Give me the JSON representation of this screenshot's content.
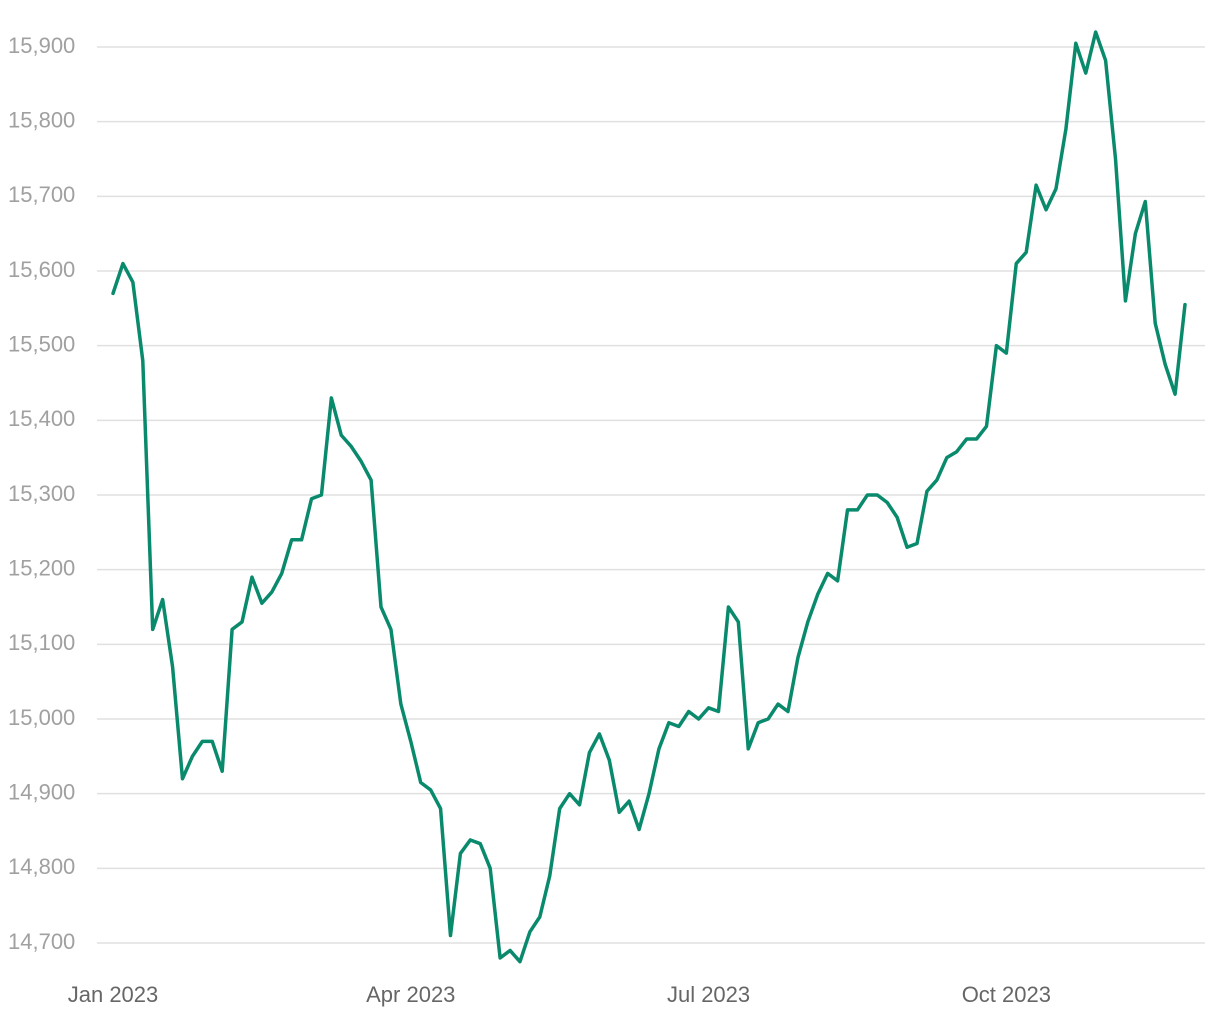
{
  "chart_data": {
    "type": "line",
    "categories": [
      "Jan 2023",
      null,
      null,
      null,
      null,
      null,
      null,
      null,
      null,
      null,
      null,
      null,
      null,
      null,
      null,
      null,
      null,
      null,
      null,
      null,
      null,
      null,
      null,
      null,
      null,
      null,
      null,
      null,
      null,
      null,
      "Apr 2023",
      null,
      null,
      null,
      null,
      null,
      null,
      null,
      null,
      null,
      null,
      null,
      null,
      null,
      null,
      null,
      null,
      null,
      null,
      null,
      null,
      null,
      null,
      null,
      null,
      null,
      null,
      null,
      null,
      null,
      "Jul 2023",
      null,
      null,
      null,
      null,
      null,
      null,
      null,
      null,
      null,
      null,
      null,
      null,
      null,
      null,
      null,
      null,
      null,
      null,
      null,
      null,
      null,
      null,
      null,
      null,
      null,
      null,
      null,
      null,
      null,
      "Oct 2023",
      null,
      null,
      null,
      null,
      null,
      null,
      null,
      null,
      null,
      null,
      null,
      null,
      null,
      null,
      null,
      null,
      null,
      null
    ],
    "values": [
      15570,
      15610,
      15585,
      15480,
      15120,
      15160,
      15070,
      14920,
      14950,
      14970,
      14970,
      14930,
      15120,
      15130,
      15190,
      15155,
      15170,
      15195,
      15240,
      15240,
      15295,
      15300,
      15430,
      15380,
      15365,
      15345,
      15320,
      15150,
      15120,
      15020,
      14970,
      14915,
      14905,
      14880,
      14710,
      14820,
      14838,
      14833,
      14800,
      14680,
      14690,
      14675,
      14715,
      14735,
      14790,
      14880,
      14900,
      14885,
      14955,
      14980,
      14945,
      14875,
      14890,
      14852,
      14900,
      14960,
      14995,
      14990,
      15010,
      15000,
      15015,
      15010,
      15150,
      15130,
      14960,
      14995,
      15000,
      15020,
      15010,
      15082,
      15130,
      15167,
      15195,
      15185,
      15280,
      15280,
      15300,
      15300,
      15290,
      15270,
      15230,
      15235,
      15305,
      15320,
      15350,
      15358,
      15375,
      15375,
      15392,
      15500,
      15490,
      15610,
      15625,
      15715,
      15682,
      15710,
      15790,
      15905,
      15865,
      15920,
      15882,
      15750,
      15560,
      15650,
      15693,
      15530,
      15475,
      15435,
      15555
    ],
    "color": "#0a8a6c",
    "ylim": [
      14640,
      15960
    ],
    "yticks": [
      {
        "value": 14700,
        "label": "14,700"
      },
      {
        "value": 14800,
        "label": "14,800"
      },
      {
        "value": 14900,
        "label": "14,900"
      },
      {
        "value": 15000,
        "label": "15,000"
      },
      {
        "value": 15100,
        "label": "15,100"
      },
      {
        "value": 15200,
        "label": "15,200"
      },
      {
        "value": 15300,
        "label": "15,300"
      },
      {
        "value": 15400,
        "label": "15,400"
      },
      {
        "value": 15500,
        "label": "15,500"
      },
      {
        "value": 15600,
        "label": "15,600"
      },
      {
        "value": 15700,
        "label": "15,700"
      },
      {
        "value": 15800,
        "label": "15,800"
      },
      {
        "value": 15900,
        "label": "15,900"
      }
    ],
    "grid": true
  }
}
